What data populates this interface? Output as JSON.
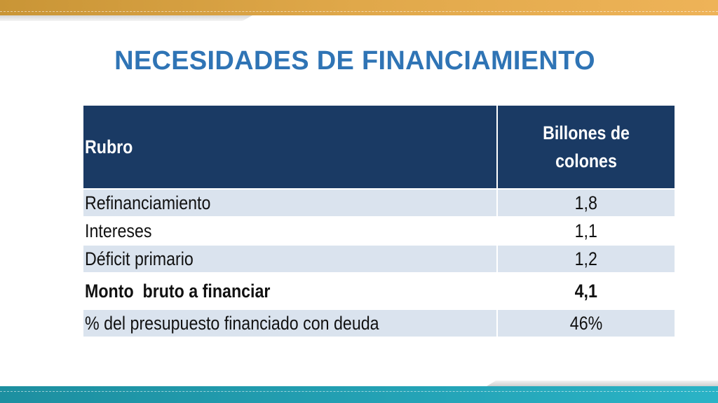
{
  "slide": {
    "title": "NECESIDADES DE FINANCIAMIENTO",
    "colors": {
      "title": "#2f74b5",
      "header_bg": "#1a3a64",
      "row_shade": "#dae3ee",
      "top_band": "#e0a84a",
      "bottom_band": "#23a0b3"
    }
  },
  "table": {
    "headers": {
      "rubro": "Rubro",
      "valor_line1": "Billones de",
      "valor_line2": "colones"
    },
    "rows": [
      {
        "rubro": "Refinanciamiento",
        "valor": "1,8"
      },
      {
        "rubro": "Intereses",
        "valor": "1,1"
      },
      {
        "rubro": "Déficit primario",
        "valor": "1,2"
      },
      {
        "rubro": "Monto  bruto a financiar",
        "valor": "4,1"
      },
      {
        "rubro": "% del presupuesto financiado con deuda",
        "valor": "46%"
      }
    ]
  }
}
